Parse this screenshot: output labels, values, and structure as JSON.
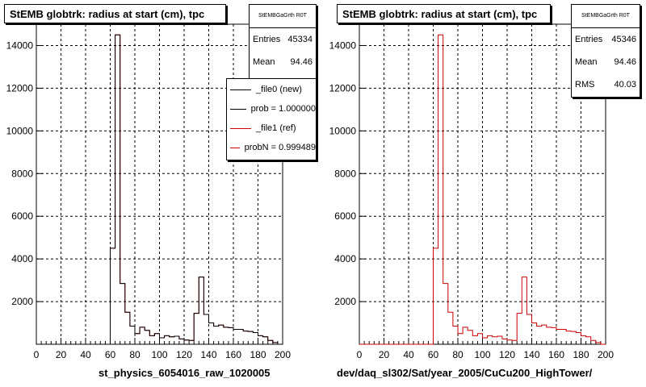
{
  "colors": {
    "file0": "#000000",
    "file1": "#cc0000",
    "axis": "#000000",
    "grid": "#000000"
  },
  "pads": [
    {
      "title": "StEMB globtrk: radius at start (cm), tpc",
      "xlabel": "st_physics_6054016_raw_1020005",
      "stats": {
        "name": "StEMBGaGrth R0T",
        "entries_label": "Entries",
        "entries": "45334",
        "mean_label": "Mean",
        "mean": "94.46"
      },
      "legend": [
        {
          "label": "_file0 (new)",
          "color": "#000000"
        },
        {
          "label": "prob = 1.000000",
          "color": "#000000"
        },
        {
          "label": "_file1 (ref)",
          "color": "#cc0000"
        },
        {
          "label": "probN = 0.999489",
          "color": "#cc0000"
        }
      ]
    },
    {
      "title": "StEMB globtrk: radius at start (cm), tpc",
      "xlabel": "dev/daq_sl302/Sat/year_2005/CuCu200_HighTower/",
      "stats": {
        "name": "StEMBGaGrth R0T",
        "entries_label": "Entries",
        "entries": "45346",
        "mean_label": "Mean",
        "mean": "94.46",
        "rms_label": "RMS",
        "rms": "40.03"
      }
    }
  ],
  "chart_data": [
    {
      "type": "histogram",
      "title": "StEMB globtrk: radius at start (cm), tpc",
      "xlabel": "st_physics_6054016_raw_1020005",
      "xlim": [
        0,
        200
      ],
      "ylim": [
        0,
        15000
      ],
      "xticks": [
        0,
        20,
        40,
        60,
        80,
        100,
        120,
        140,
        160,
        180,
        200
      ],
      "yticks": [
        2000,
        4000,
        6000,
        8000,
        10000,
        12000,
        14000
      ],
      "grid": true,
      "bin_width": 4,
      "bin_edges_start": 0,
      "series": [
        {
          "name": "_file1 (ref)",
          "color": "#cc0000",
          "values": [
            0,
            0,
            0,
            0,
            0,
            0,
            0,
            0,
            0,
            0,
            0,
            0,
            0,
            0,
            0,
            4500,
            14500,
            2850,
            1500,
            850,
            500,
            800,
            650,
            400,
            500,
            300,
            400,
            350,
            380,
            250,
            200,
            180,
            1450,
            3150,
            1400,
            1000,
            850,
            900,
            800,
            780,
            700,
            700,
            620,
            600,
            550,
            400,
            350,
            180,
            80,
            0
          ]
        },
        {
          "name": "_file0 (new)",
          "color": "#000000",
          "values": [
            0,
            0,
            0,
            0,
            0,
            0,
            0,
            0,
            0,
            0,
            0,
            0,
            0,
            0,
            0,
            4500,
            14500,
            2850,
            1500,
            850,
            500,
            800,
            650,
            400,
            500,
            300,
            400,
            350,
            380,
            250,
            200,
            180,
            1450,
            3150,
            1400,
            1000,
            850,
            900,
            800,
            780,
            700,
            700,
            620,
            600,
            550,
            400,
            350,
            180,
            80,
            0
          ]
        }
      ]
    },
    {
      "type": "histogram",
      "title": "StEMB globtrk: radius at start (cm), tpc",
      "xlabel": "dev/daq_sl302/Sat/year_2005/CuCu200_HighTower/",
      "xlim": [
        0,
        200
      ],
      "ylim": [
        0,
        15000
      ],
      "xticks": [
        0,
        20,
        40,
        60,
        80,
        100,
        120,
        140,
        160,
        180,
        200
      ],
      "yticks": [
        2000,
        4000,
        6000,
        8000,
        10000,
        12000,
        14000
      ],
      "grid": true,
      "bin_width": 4,
      "bin_edges_start": 0,
      "series": [
        {
          "name": "_file1 (ref)",
          "color": "#cc0000",
          "values": [
            0,
            0,
            0,
            0,
            0,
            0,
            0,
            0,
            0,
            0,
            0,
            0,
            0,
            0,
            0,
            4500,
            14500,
            2850,
            1500,
            850,
            500,
            800,
            650,
            400,
            500,
            300,
            400,
            350,
            380,
            250,
            200,
            180,
            1450,
            3150,
            1400,
            1000,
            850,
            900,
            800,
            780,
            700,
            700,
            620,
            600,
            550,
            400,
            350,
            180,
            80,
            0
          ]
        }
      ]
    }
  ]
}
